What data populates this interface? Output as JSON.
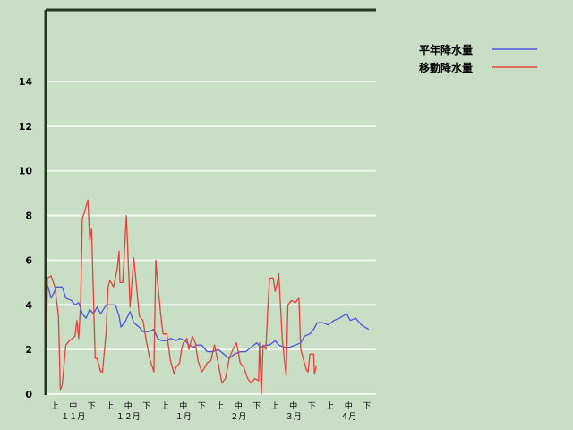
{
  "chart_data": {
    "type": "line",
    "title": "",
    "xlabel": "",
    "ylabel": "",
    "ylim": [
      0,
      16
    ],
    "xlim": [
      0,
      180
    ],
    "grid": true,
    "legend_placement": "top-right",
    "y_ticks": [
      "0",
      "2",
      "4",
      "6",
      "8",
      "10",
      "12",
      "14"
    ],
    "x_dekad_labels": [
      "上",
      "中",
      "下",
      "上",
      "中",
      "下",
      "上",
      "中",
      "下",
      "上",
      "中",
      "下",
      "上",
      "中",
      "下",
      "上",
      "中",
      "下"
    ],
    "x_month_labels": [
      "１１月",
      "１２月",
      "１月",
      "２月",
      "３月",
      "４月"
    ],
    "series": [
      {
        "name": "平年降水量",
        "color": "#4a55e0",
        "points": [
          [
            0,
            4.8
          ],
          [
            1,
            4.9
          ],
          [
            3,
            4.3
          ],
          [
            6,
            4.8
          ],
          [
            9,
            4.8
          ],
          [
            11,
            4.3
          ],
          [
            14,
            4.2
          ],
          [
            16,
            4.0
          ],
          [
            18,
            4.1
          ],
          [
            20,
            3.6
          ],
          [
            22,
            3.4
          ],
          [
            24,
            3.8
          ],
          [
            26,
            3.6
          ],
          [
            28,
            3.9
          ],
          [
            30,
            3.6
          ],
          [
            33,
            4.0
          ],
          [
            36,
            4.0
          ],
          [
            38,
            4.0
          ],
          [
            40,
            3.5
          ],
          [
            41,
            3.0
          ],
          [
            43,
            3.2
          ],
          [
            46,
            3.7
          ],
          [
            48,
            3.2
          ],
          [
            51,
            3.0
          ],
          [
            53,
            2.8
          ],
          [
            56,
            2.8
          ],
          [
            59,
            2.9
          ],
          [
            61,
            2.5
          ],
          [
            63,
            2.4
          ],
          [
            66,
            2.4
          ],
          [
            68,
            2.5
          ],
          [
            71,
            2.4
          ],
          [
            73,
            2.5
          ],
          [
            76,
            2.4
          ],
          [
            78,
            2.2
          ],
          [
            81,
            2.1
          ],
          [
            82,
            2.2
          ],
          [
            85,
            2.2
          ],
          [
            88,
            1.9
          ],
          [
            91,
            1.9
          ],
          [
            94,
            2.0
          ],
          [
            97,
            1.8
          ],
          [
            100,
            1.6
          ],
          [
            103,
            1.8
          ],
          [
            106,
            1.9
          ],
          [
            109,
            1.9
          ],
          [
            112,
            2.1
          ],
          [
            115,
            2.3
          ],
          [
            117,
            2.1
          ],
          [
            120,
            2.2
          ],
          [
            122,
            2.2
          ],
          [
            125,
            2.4
          ],
          [
            127,
            2.2
          ],
          [
            130,
            2.1
          ],
          [
            133,
            2.1
          ],
          [
            136,
            2.2
          ],
          [
            139,
            2.3
          ],
          [
            141,
            2.6
          ],
          [
            144,
            2.7
          ],
          [
            146,
            2.9
          ],
          [
            148,
            3.2
          ],
          [
            151,
            3.2
          ],
          [
            154,
            3.1
          ],
          [
            157,
            3.3
          ],
          [
            160,
            3.4
          ],
          [
            162,
            3.5
          ],
          [
            164,
            3.6
          ],
          [
            166,
            3.3
          ],
          [
            169,
            3.4
          ],
          [
            172,
            3.1
          ],
          [
            174,
            3.0
          ],
          [
            176,
            2.9
          ]
        ]
      },
      {
        "name": "移動降水量",
        "color": "#e8403a",
        "points": [
          [
            0,
            0
          ],
          [
            1,
            5.2
          ],
          [
            3,
            5.3
          ],
          [
            5,
            4.8
          ],
          [
            7,
            3.5
          ],
          [
            8,
            0.2
          ],
          [
            9,
            0.4
          ],
          [
            11,
            2.2
          ],
          [
            13,
            2.4
          ],
          [
            16,
            2.6
          ],
          [
            17,
            3.3
          ],
          [
            18,
            2.5
          ],
          [
            19,
            4.0
          ],
          [
            20,
            7.9
          ],
          [
            21,
            8.1
          ],
          [
            23,
            8.7
          ],
          [
            24,
            6.9
          ],
          [
            25,
            7.4
          ],
          [
            27,
            1.6
          ],
          [
            28,
            1.6
          ],
          [
            30,
            1.0
          ],
          [
            31,
            1.0
          ],
          [
            33,
            2.8
          ],
          [
            34,
            4.8
          ],
          [
            35,
            5.1
          ],
          [
            37,
            4.8
          ],
          [
            39,
            5.6
          ],
          [
            40,
            6.4
          ],
          [
            40.5,
            5.0
          ],
          [
            42,
            5.0
          ],
          [
            44,
            8.0
          ],
          [
            46,
            3.9
          ],
          [
            48,
            6.1
          ],
          [
            49,
            5.3
          ],
          [
            51,
            3.5
          ],
          [
            53,
            3.3
          ],
          [
            55,
            2.3
          ],
          [
            57,
            1.5
          ],
          [
            59,
            1.0
          ],
          [
            60,
            6.0
          ],
          [
            61,
            5.0
          ],
          [
            63,
            3.3
          ],
          [
            64,
            2.7
          ],
          [
            66,
            2.7
          ],
          [
            68,
            1.5
          ],
          [
            70,
            0.9
          ],
          [
            71,
            1.2
          ],
          [
            73,
            1.4
          ],
          [
            74,
            2.0
          ],
          [
            75,
            2.3
          ],
          [
            77,
            2.5
          ],
          [
            78,
            2.0
          ],
          [
            80,
            2.6
          ],
          [
            81.5,
            2.3
          ],
          [
            83,
            1.5
          ],
          [
            85,
            1.0
          ],
          [
            86,
            1.1
          ],
          [
            88,
            1.4
          ],
          [
            90,
            1.5
          ],
          [
            92,
            2.2
          ],
          [
            94,
            1.4
          ],
          [
            96,
            0.5
          ],
          [
            98,
            0.7
          ],
          [
            100,
            1.6
          ],
          [
            102,
            2.0
          ],
          [
            104,
            2.3
          ],
          [
            106,
            1.4
          ],
          [
            108,
            1.2
          ],
          [
            110,
            0.7
          ],
          [
            112,
            0.5
          ],
          [
            114,
            0.7
          ],
          [
            116,
            0.6
          ],
          [
            116.5,
            2.3
          ],
          [
            117.5,
            0.0
          ],
          [
            118.5,
            2.2
          ],
          [
            120,
            2.0
          ],
          [
            121,
            3.8
          ],
          [
            122,
            5.2
          ],
          [
            124,
            5.2
          ],
          [
            125,
            4.6
          ],
          [
            126,
            4.9
          ],
          [
            127,
            5.4
          ],
          [
            129,
            2.4
          ],
          [
            131,
            0.8
          ],
          [
            132,
            4.0
          ],
          [
            134,
            4.2
          ],
          [
            136,
            4.1
          ],
          [
            138,
            4.3
          ],
          [
            139,
            2.0
          ],
          [
            142,
            1.1
          ],
          [
            143,
            1.0
          ],
          [
            144,
            1.8
          ],
          [
            146,
            1.8
          ],
          [
            146.5,
            0.9
          ],
          [
            147.5,
            1.3
          ]
        ]
      }
    ]
  }
}
